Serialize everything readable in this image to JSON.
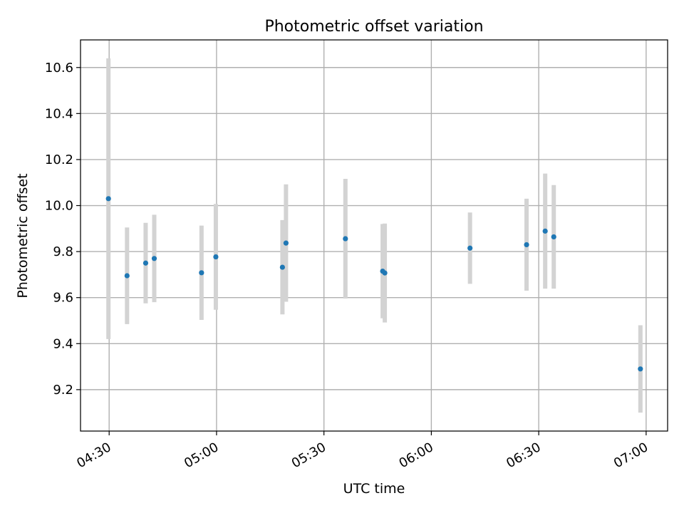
{
  "chart_data": {
    "type": "scatter",
    "title": "Photometric offset variation",
    "xlabel": "UTC time",
    "ylabel": "Photometric offset",
    "xlim": [
      "04:22",
      "07:06"
    ],
    "ylim": [
      9.02,
      10.72
    ],
    "grid": true,
    "x_ticks": [
      "04:30",
      "05:00",
      "05:30",
      "06:00",
      "06:30",
      "07:00"
    ],
    "y_ticks": [
      "9.2",
      "9.4",
      "9.6",
      "9.8",
      "10.0",
      "10.2",
      "10.4",
      "10.6"
    ],
    "points": [
      {
        "x": "04:29:48",
        "y": 10.03,
        "err": 0.61
      },
      {
        "x": "04:35:00",
        "y": 9.695,
        "err": 0.21
      },
      {
        "x": "04:40:12",
        "y": 9.75,
        "err": 0.175
      },
      {
        "x": "04:42:36",
        "y": 9.77,
        "err": 0.19
      },
      {
        "x": "04:55:48",
        "y": 9.708,
        "err": 0.205
      },
      {
        "x": "04:59:48",
        "y": 9.777,
        "err": 0.23
      },
      {
        "x": "05:18:24",
        "y": 9.732,
        "err": 0.205
      },
      {
        "x": "05:19:24",
        "y": 9.837,
        "err": 0.255
      },
      {
        "x": "05:36:00",
        "y": 9.856,
        "err": 0.26
      },
      {
        "x": "05:46:24",
        "y": 9.715,
        "err": 0.205
      },
      {
        "x": "05:47:00",
        "y": 9.707,
        "err": 0.215
      },
      {
        "x": "06:10:48",
        "y": 9.815,
        "err": 0.155
      },
      {
        "x": "06:26:36",
        "y": 9.83,
        "err": 0.2
      },
      {
        "x": "06:31:48",
        "y": 9.889,
        "err": 0.25
      },
      {
        "x": "06:34:12",
        "y": 9.864,
        "err": 0.225
      },
      {
        "x": "06:58:24",
        "y": 9.29,
        "err": 0.19
      }
    ],
    "marker_color": "#1f77b4",
    "errorbar_color": "#d3d3d3",
    "grid_color": "#b0b0b0"
  }
}
